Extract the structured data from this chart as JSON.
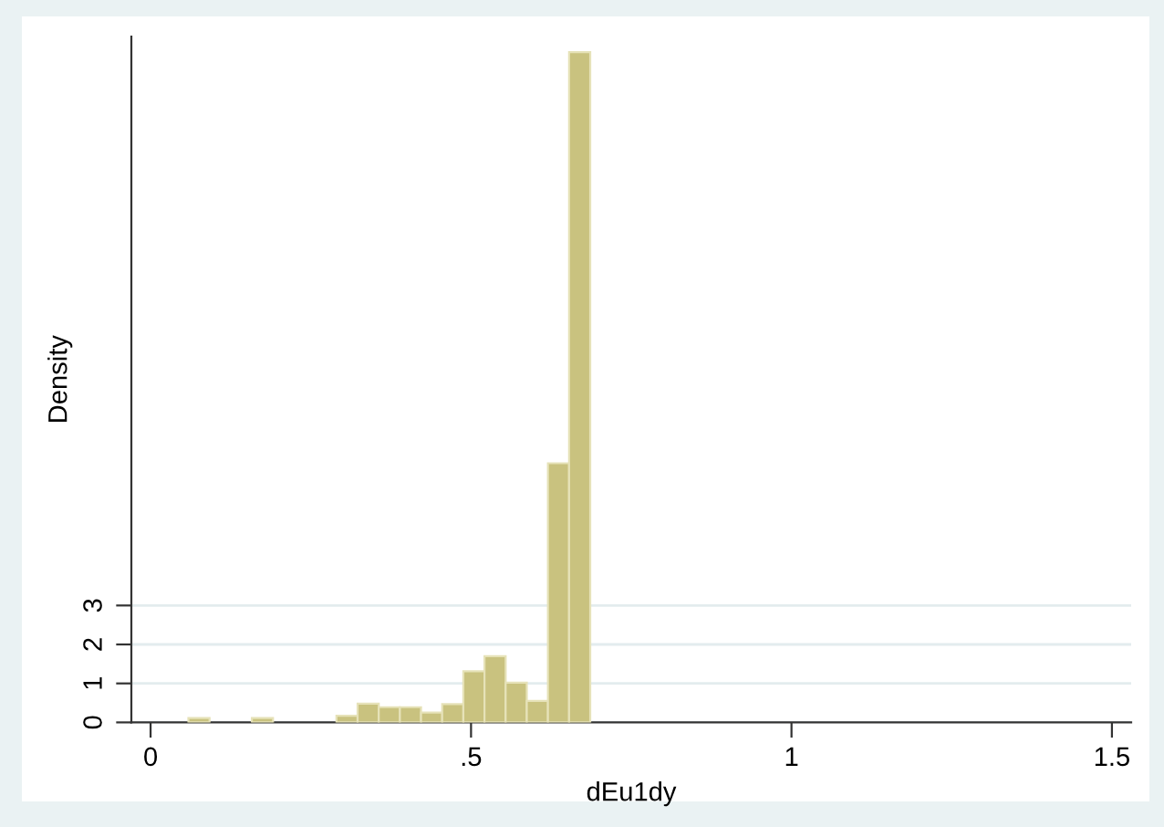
{
  "chart_data": {
    "type": "histogram",
    "xlabel": "dEu1dy",
    "ylabel": "Density",
    "bins": [
      0.059,
      0.092,
      0.125,
      0.158,
      0.191,
      0.224,
      0.257,
      0.29,
      0.323,
      0.356,
      0.389,
      0.422,
      0.455,
      0.488,
      0.521,
      0.554,
      0.587,
      0.62,
      0.653,
      0.686
    ],
    "values": [
      0.11,
      0,
      0,
      0.11,
      0,
      0,
      0,
      0.17,
      0.48,
      0.39,
      0.39,
      0.25,
      0.47,
      1.31,
      1.7,
      1.02,
      0.55,
      6.65,
      17.2
    ],
    "color": "#c9c27f",
    "xlim": [
      -0.03,
      1.53
    ],
    "ylim": [
      0,
      17.6
    ],
    "xticks": [
      0,
      {
        "value": 0.5,
        "label": ".5"
      },
      1,
      1.5
    ],
    "yticks": [
      0,
      1,
      2,
      3
    ],
    "grid": "y"
  }
}
